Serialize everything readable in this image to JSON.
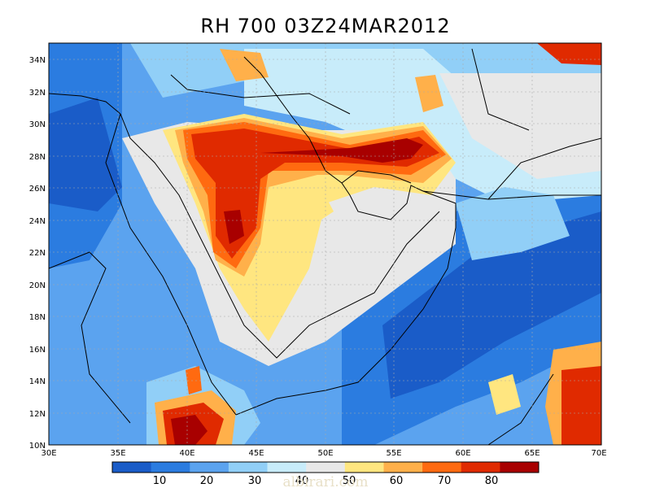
{
  "title": "RH 700 03Z24MAR2012",
  "lat_labels": [
    "34N",
    "32N",
    "30N",
    "28N",
    "26N",
    "24N",
    "22N",
    "20N",
    "18N",
    "16N",
    "14N",
    "12N",
    "10N"
  ],
  "lon_labels": [
    "30E",
    "35E",
    "40E",
    "45E",
    "50E",
    "55E",
    "60E",
    "65E",
    "70E"
  ],
  "colorbar": {
    "labels": [
      "10",
      "20",
      "30",
      "40",
      "50",
      "60",
      "70",
      "80"
    ],
    "colors": [
      "#1a5cc8",
      "#2b7ce0",
      "#5ba3ef",
      "#91cff7",
      "#c8ecfa",
      "#e8e8e8",
      "#ffe680",
      "#ffb04a",
      "#ff6a10",
      "#e02a00",
      "#a80000"
    ]
  },
  "watermark": "albirari.com",
  "colors": {
    "coast": "#000000",
    "grid": "#aaaaaa"
  }
}
